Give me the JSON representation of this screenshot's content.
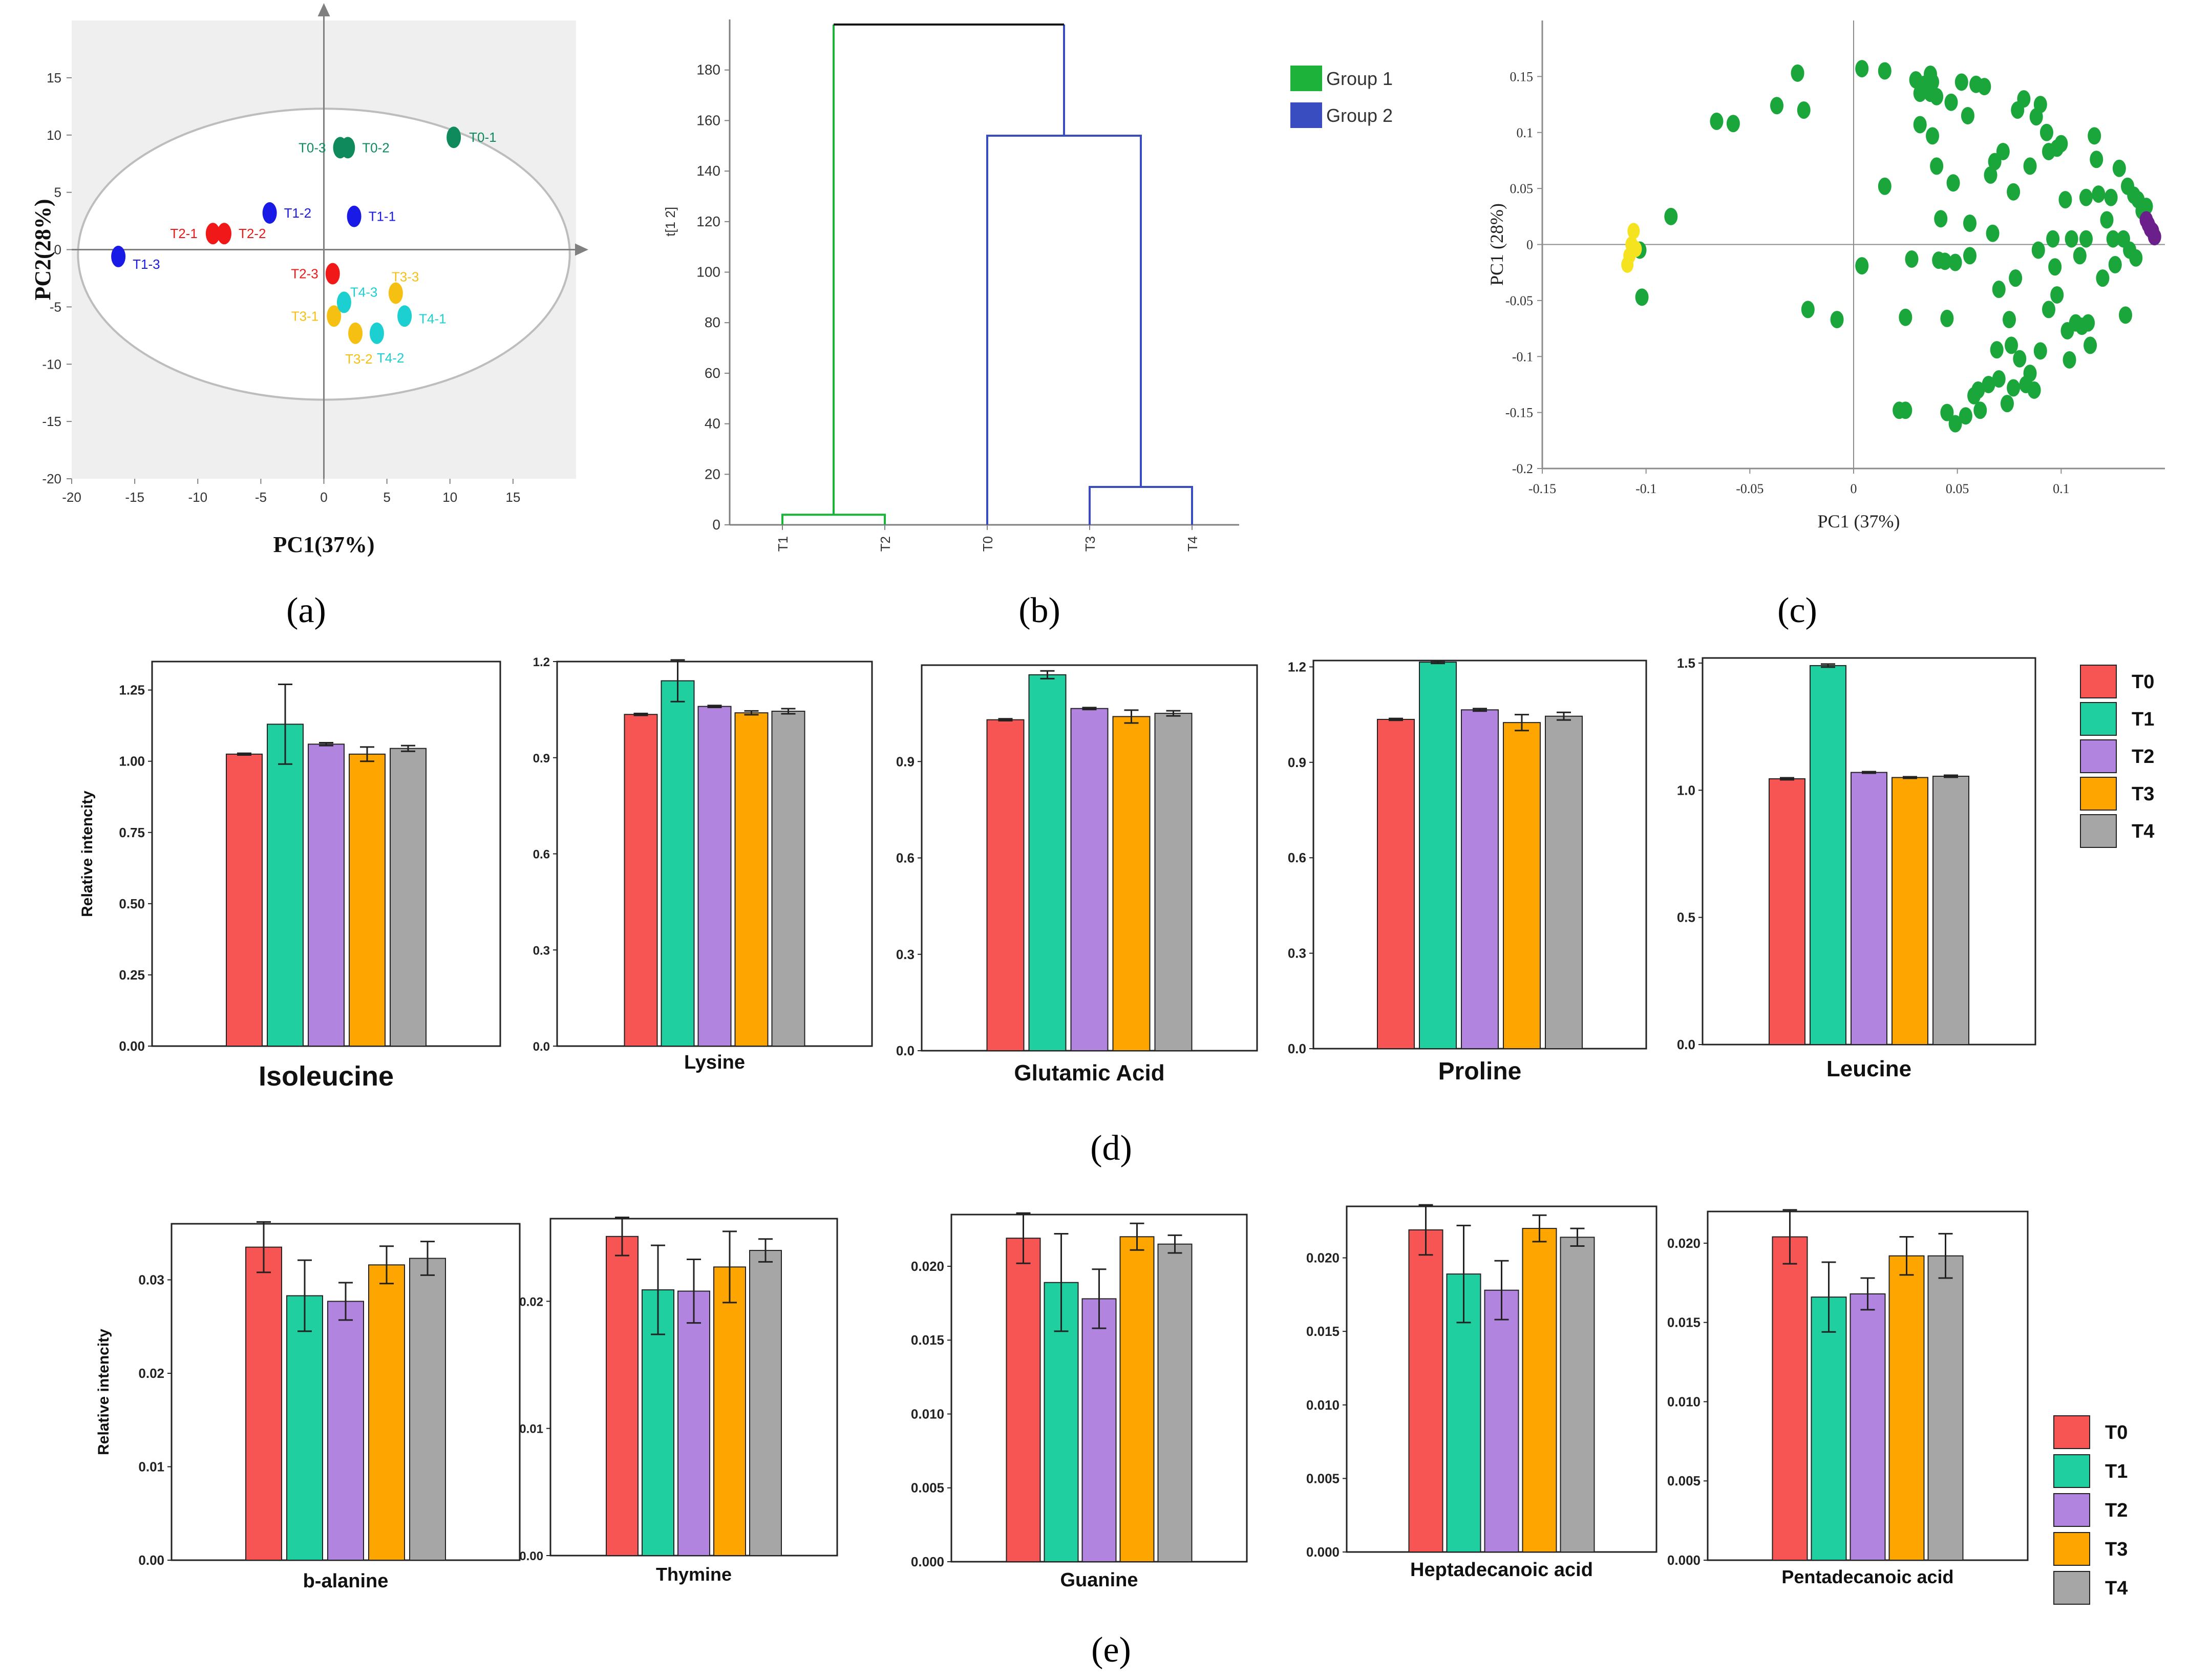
{
  "colors": {
    "T0": "#f75454",
    "T1": "#1fcfa0",
    "T2": "#b184e0",
    "T3": "#ffa500",
    "T4": "#a6a6a6",
    "red": "#f01818",
    "blue": "#1a1ae6",
    "teal": "#1ccfd0",
    "yellow": "#f5c012",
    "darkgreen": "#0f8a5c",
    "group1": "#1db33a",
    "group2": "#3a4dc0",
    "green_dot": "#1aa63a",
    "yellow_dot": "#f5e31f",
    "purple_dot": "#6b1f8a"
  },
  "panel_labels": {
    "a": "(a)",
    "b": "(b)",
    "c": "(c)",
    "d": "(d)",
    "e": "(e)"
  },
  "chart_data": [
    {
      "id": "a",
      "type": "scatter",
      "xlabel": "PC1(37%)",
      "ylabel": "PC2(28%)",
      "xlim": [
        -20,
        20
      ],
      "ylim": [
        -20,
        20
      ],
      "xticks": [
        -20,
        -15,
        -10,
        -5,
        0,
        5,
        10,
        15
      ],
      "yticks": [
        -20,
        -15,
        -10,
        -5,
        0,
        5,
        10,
        15
      ],
      "points": [
        {
          "label": "T0-1",
          "x": 10.3,
          "y": 9.8,
          "group": "T0"
        },
        {
          "label": "T0-2",
          "x": 1.9,
          "y": 8.9,
          "group": "T0"
        },
        {
          "label": "T0-3",
          "x": 1.3,
          "y": 8.9,
          "group": "T0"
        },
        {
          "label": "T1-1",
          "x": 2.4,
          "y": 2.9,
          "group": "T1"
        },
        {
          "label": "T1-2",
          "x": -4.3,
          "y": 3.2,
          "group": "T1"
        },
        {
          "label": "T1-3",
          "x": -16.3,
          "y": -0.6,
          "group": "T1"
        },
        {
          "label": "T2-1",
          "x": -8.8,
          "y": 1.4,
          "group": "T2"
        },
        {
          "label": "T2-2",
          "x": -7.9,
          "y": 1.4,
          "group": "T2"
        },
        {
          "label": "T2-3",
          "x": 0.7,
          "y": -2.1,
          "group": "T2"
        },
        {
          "label": "T3-1",
          "x": 0.8,
          "y": -5.8,
          "group": "T3"
        },
        {
          "label": "T3-2",
          "x": 2.5,
          "y": -7.3,
          "group": "T3"
        },
        {
          "label": "T3-3",
          "x": 5.7,
          "y": -3.8,
          "group": "T3"
        },
        {
          "label": "T4-1",
          "x": 6.4,
          "y": -5.8,
          "group": "T4"
        },
        {
          "label": "T4-2",
          "x": 4.2,
          "y": -7.3,
          "group": "T4"
        },
        {
          "label": "T4-3",
          "x": 1.6,
          "y": -4.6,
          "group": "T4"
        }
      ]
    },
    {
      "id": "b",
      "type": "dendrogram",
      "ylabel": "t[1 2]",
      "ylim": [
        0,
        200
      ],
      "yticks": [
        0,
        20,
        40,
        60,
        80,
        100,
        120,
        140,
        160,
        180
      ],
      "leaves": [
        "T1",
        "T2",
        "T0",
        "T3",
        "T4"
      ],
      "merges": [
        {
          "left": "T1",
          "right": "T2",
          "height": 4,
          "group": "Group 1"
        },
        {
          "left": "T3",
          "right": "T4",
          "height": 15,
          "group": "Group 2"
        },
        {
          "left": "T0",
          "right": "T3+T4",
          "height": 154,
          "group": "Group 2"
        },
        {
          "left": "Group 1",
          "right": "Group 2",
          "height": 198,
          "group": "root"
        }
      ],
      "legend": [
        {
          "name": "Group 1",
          "color_key": "group1"
        },
        {
          "name": "Group 2",
          "color_key": "group2"
        }
      ]
    },
    {
      "id": "c",
      "type": "scatter",
      "xlabel": "PC1 (37%)",
      "ylabel": "PC1 (28%)",
      "xlim": [
        -0.15,
        0.15
      ],
      "ylim": [
        -0.2,
        0.2
      ],
      "xticks": [
        -0.15,
        -0.1,
        -0.05,
        0,
        0.05,
        0.1
      ],
      "yticks": [
        -0.2,
        -0.15,
        -0.1,
        -0.05,
        0,
        0.05,
        0.1,
        0.15
      ],
      "green_points": [
        [
          -0.103,
          -0.005
        ],
        [
          -0.102,
          -0.047
        ],
        [
          -0.088,
          0.025
        ],
        [
          -0.066,
          0.11
        ],
        [
          -0.058,
          0.108
        ],
        [
          -0.037,
          0.124
        ],
        [
          -0.024,
          0.12
        ],
        [
          -0.027,
          0.153
        ],
        [
          -0.022,
          -0.058
        ],
        [
          -0.008,
          -0.067
        ],
        [
          0.004,
          0.157
        ],
        [
          0.004,
          -0.019
        ],
        [
          0.015,
          0.052
        ],
        [
          0.015,
          0.155
        ],
        [
          0.022,
          -0.148
        ],
        [
          0.025,
          -0.148
        ],
        [
          0.025,
          -0.065
        ],
        [
          0.028,
          -0.013
        ],
        [
          0.03,
          0.147
        ],
        [
          0.032,
          0.135
        ],
        [
          0.032,
          0.107
        ],
        [
          0.034,
          0.143
        ],
        [
          0.037,
          0.135
        ],
        [
          0.037,
          0.152
        ],
        [
          0.038,
          0.145
        ],
        [
          0.038,
          0.097
        ],
        [
          0.04,
          0.132
        ],
        [
          0.04,
          0.07
        ],
        [
          0.041,
          -0.014
        ],
        [
          0.042,
          0.023
        ],
        [
          0.044,
          -0.015
        ],
        [
          0.045,
          -0.15
        ],
        [
          0.045,
          -0.066
        ],
        [
          0.047,
          0.127
        ],
        [
          0.048,
          0.055
        ],
        [
          0.049,
          -0.016
        ],
        [
          0.049,
          -0.16
        ],
        [
          0.052,
          0.145
        ],
        [
          0.054,
          -0.153
        ],
        [
          0.055,
          0.115
        ],
        [
          0.056,
          -0.01
        ],
        [
          0.056,
          0.019
        ],
        [
          0.058,
          -0.135
        ],
        [
          0.059,
          0.143
        ],
        [
          0.06,
          -0.13
        ],
        [
          0.061,
          -0.148
        ],
        [
          0.063,
          0.141
        ],
        [
          0.065,
          -0.125
        ],
        [
          0.066,
          0.062
        ],
        [
          0.067,
          0.01
        ],
        [
          0.068,
          0.074
        ],
        [
          0.069,
          -0.094
        ],
        [
          0.07,
          -0.04
        ],
        [
          0.07,
          -0.12
        ],
        [
          0.072,
          0.083
        ],
        [
          0.074,
          -0.142
        ],
        [
          0.075,
          -0.067
        ],
        [
          0.076,
          -0.09
        ],
        [
          0.077,
          0.047
        ],
        [
          0.077,
          -0.128
        ],
        [
          0.078,
          -0.03
        ],
        [
          0.079,
          0.12
        ],
        [
          0.08,
          -0.102
        ],
        [
          0.082,
          0.13
        ],
        [
          0.083,
          -0.125
        ],
        [
          0.085,
          -0.115
        ],
        [
          0.085,
          0.07
        ],
        [
          0.087,
          -0.13
        ],
        [
          0.088,
          0.114
        ],
        [
          0.089,
          -0.005
        ],
        [
          0.09,
          -0.095
        ],
        [
          0.09,
          0.125
        ],
        [
          0.093,
          0.1
        ],
        [
          0.094,
          0.083
        ],
        [
          0.094,
          -0.058
        ],
        [
          0.096,
          0.005
        ],
        [
          0.097,
          -0.02
        ],
        [
          0.098,
          -0.045
        ],
        [
          0.098,
          0.086
        ],
        [
          0.1,
          0.09
        ],
        [
          0.102,
          0.04
        ],
        [
          0.103,
          -0.077
        ],
        [
          0.104,
          -0.103
        ],
        [
          0.105,
          0.005
        ],
        [
          0.107,
          -0.07
        ],
        [
          0.109,
          -0.01
        ],
        [
          0.11,
          -0.073
        ],
        [
          0.112,
          0.005
        ],
        [
          0.112,
          0.042
        ],
        [
          0.113,
          -0.07
        ],
        [
          0.114,
          -0.09
        ],
        [
          0.116,
          0.097
        ],
        [
          0.117,
          0.076
        ],
        [
          0.118,
          0.045
        ],
        [
          0.12,
          -0.03
        ],
        [
          0.122,
          0.022
        ],
        [
          0.124,
          0.042
        ],
        [
          0.125,
          0.005
        ],
        [
          0.126,
          -0.018
        ],
        [
          0.128,
          0.068
        ],
        [
          0.13,
          0.005
        ],
        [
          0.131,
          -0.063
        ],
        [
          0.132,
          0.052
        ],
        [
          0.133,
          -0.005
        ],
        [
          0.135,
          0.044
        ],
        [
          0.136,
          -0.012
        ],
        [
          0.137,
          0.04
        ],
        [
          0.139,
          0.03
        ],
        [
          0.141,
          0.034
        ]
      ],
      "yellow_points": [
        [
          -0.109,
          -0.018
        ],
        [
          -0.108,
          -0.01
        ],
        [
          -0.107,
          0.0
        ],
        [
          -0.106,
          0.012
        ],
        [
          -0.105,
          -0.004
        ]
      ],
      "purple_points": [
        [
          0.141,
          0.022
        ],
        [
          0.142,
          0.018
        ],
        [
          0.143,
          0.014
        ],
        [
          0.144,
          0.012
        ],
        [
          0.145,
          0.007
        ]
      ]
    },
    {
      "id": "d",
      "type": "bar",
      "ylabel": "Relative intencity",
      "groups": [
        "T0",
        "T1",
        "T2",
        "T3",
        "T4"
      ],
      "legend": [
        "T0",
        "T1",
        "T2",
        "T3",
        "T4"
      ],
      "subplots": [
        {
          "title": "Isoleucine",
          "ylim": [
            0,
            1.35
          ],
          "yticks": [
            "0.00",
            "0.25",
            "0.50",
            "0.75",
            "1.00",
            "1.25"
          ],
          "values": [
            1.025,
            1.13,
            1.06,
            1.025,
            1.045
          ],
          "errors": [
            0.003,
            0.14,
            0.005,
            0.025,
            0.01
          ]
        },
        {
          "title": "Lysine",
          "ylim": [
            0,
            1.2
          ],
          "yticks": [
            "0.0",
            "0.3",
            "0.6",
            "0.9",
            "1.2"
          ],
          "values": [
            1.035,
            1.14,
            1.06,
            1.04,
            1.045
          ],
          "errors": [
            0.003,
            0.065,
            0.003,
            0.006,
            0.008
          ]
        },
        {
          "title": "Glutamic Acid",
          "ylim": [
            0,
            1.2
          ],
          "yticks": [
            "0.0",
            "0.3",
            "0.6",
            "0.9"
          ],
          "values": [
            1.03,
            1.17,
            1.065,
            1.04,
            1.05
          ],
          "errors": [
            0.003,
            0.012,
            0.003,
            0.02,
            0.008
          ]
        },
        {
          "title": "Proline",
          "ylim": [
            0,
            1.22
          ],
          "yticks": [
            "0.0",
            "0.3",
            "0.6",
            "0.9",
            "1.2"
          ],
          "values": [
            1.035,
            1.215,
            1.065,
            1.025,
            1.045
          ],
          "errors": [
            0.003,
            0.004,
            0.004,
            0.025,
            0.012
          ]
        },
        {
          "title": "Leucine",
          "ylim": [
            0,
            1.52
          ],
          "yticks": [
            "0.0",
            "0.5",
            "1.0",
            "1.5"
          ],
          "values": [
            1.045,
            1.49,
            1.07,
            1.05,
            1.055
          ],
          "errors": [
            0.004,
            0.006,
            0.003,
            0.003,
            0.004
          ]
        }
      ]
    },
    {
      "id": "e",
      "type": "bar",
      "ylabel": "Relative intencity",
      "groups": [
        "T0",
        "T1",
        "T2",
        "T3",
        "T4"
      ],
      "legend": [
        "T0",
        "T1",
        "T2",
        "T3",
        "T4"
      ],
      "subplots": [
        {
          "title": "b-alanine",
          "ylim": [
            0,
            0.036
          ],
          "yticks": [
            "0.00",
            "0.01",
            "0.02",
            "0.03"
          ],
          "values": [
            0.0335,
            0.0283,
            0.0277,
            0.0316,
            0.0323
          ],
          "errors": [
            0.0027,
            0.0038,
            0.002,
            0.002,
            0.0018
          ]
        },
        {
          "title": "Thymine",
          "ylim": [
            0,
            0.0265
          ],
          "yticks": [
            "0.00",
            "0.01",
            "0.02"
          ],
          "values": [
            0.0251,
            0.0209,
            0.0208,
            0.0227,
            0.024
          ],
          "errors": [
            0.0015,
            0.0035,
            0.0025,
            0.0028,
            0.0009
          ]
        },
        {
          "title": "Guanine",
          "ylim": [
            0,
            0.0235
          ],
          "yticks": [
            "0.000",
            "0.005",
            "0.010",
            "0.015",
            "0.020"
          ],
          "values": [
            0.0219,
            0.0189,
            0.0178,
            0.022,
            0.0215
          ],
          "errors": [
            0.0017,
            0.0033,
            0.002,
            0.0009,
            0.0006
          ]
        },
        {
          "title": "Heptadecanoic acid",
          "ylim": [
            0,
            0.0235
          ],
          "yticks": [
            "0.000",
            "0.005",
            "0.010",
            "0.015",
            "0.020"
          ],
          "values": [
            0.0219,
            0.0189,
            0.0178,
            0.022,
            0.0214
          ],
          "errors": [
            0.0017,
            0.0033,
            0.002,
            0.0009,
            0.0006
          ]
        },
        {
          "title": "Pentadecanoic acid",
          "ylim": [
            0,
            0.022
          ],
          "yticks": [
            "0.000",
            "0.005",
            "0.010",
            "0.015",
            "0.020"
          ],
          "values": [
            0.0204,
            0.0166,
            0.0168,
            0.0192,
            0.0192
          ],
          "errors": [
            0.0017,
            0.0022,
            0.001,
            0.0012,
            0.0014
          ]
        }
      ]
    }
  ]
}
